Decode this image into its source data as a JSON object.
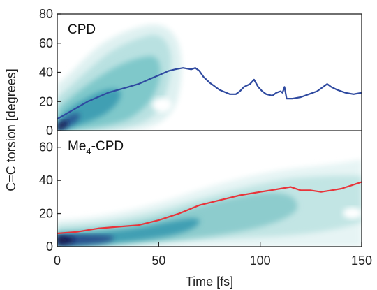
{
  "chart_data": {
    "type": "line",
    "shared_x_axis": {
      "label": "Time [fs]",
      "range": [
        0,
        150
      ],
      "ticks": [
        0,
        50,
        100,
        150
      ]
    },
    "shared_y_label": "C=C torsion [degrees]",
    "panels": [
      {
        "label": "CPD",
        "label_sub": "",
        "label_suffix": "",
        "ylim": [
          0,
          80
        ],
        "yticks": [
          0,
          20,
          40,
          60,
          80
        ],
        "line_color": "#2f4aa0",
        "density_colormap": "white-teal-navy",
        "series": [
          {
            "name": "",
            "x": [
              0,
              5,
              10,
              15,
              20,
              25,
              30,
              35,
              40,
              45,
              50,
              55,
              58,
              62,
              66,
              68,
              70,
              72,
              75,
              80,
              85,
              88,
              90,
              92,
              95,
              97,
              99,
              101,
              103,
              106,
              108,
              110,
              111,
              112,
              113,
              114,
              116,
              120,
              124,
              128,
              131,
              133,
              135,
              138,
              142,
              146,
              150
            ],
            "y": [
              8,
              12,
              16,
              20,
              23,
              26,
              28,
              30,
              32,
              35,
              38,
              41,
              42,
              43,
              42,
              43,
              41,
              37,
              33,
              28,
              25,
              25,
              27,
              30,
              32,
              35,
              30,
              27,
              25,
              24,
              26,
              27,
              26,
              30,
              22,
              22,
              22,
              23,
              25,
              27,
              30,
              32,
              30,
              28,
              26,
              25,
              26
            ]
          }
        ]
      },
      {
        "label": "Me",
        "label_sub": "4",
        "label_suffix": "-CPD",
        "ylim": [
          0,
          70
        ],
        "yticks": [
          0,
          20,
          40,
          60
        ],
        "line_color": "#e8343a",
        "density_colormap": "white-teal-navy",
        "series": [
          {
            "name": "",
            "x": [
              0,
              10,
              20,
              30,
              40,
              50,
              60,
              70,
              80,
              90,
              100,
              105,
              110,
              115,
              120,
              125,
              130,
              135,
              140,
              145,
              150
            ],
            "y": [
              8,
              9,
              11,
              12,
              13,
              16,
              20,
              25,
              28,
              31,
              33,
              34,
              35,
              36,
              34,
              34,
              33,
              34,
              35,
              37,
              39
            ]
          }
        ]
      }
    ]
  }
}
